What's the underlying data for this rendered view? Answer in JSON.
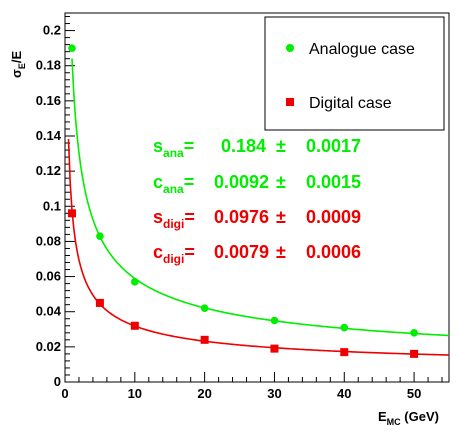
{
  "chart_data": {
    "type": "scatter",
    "xlabel": "E",
    "xlabel_sub": "MC",
    "xlabel_unit": " (GeV)",
    "ylabel": "σ",
    "ylabel_sub": "E",
    "ylabel_rest": "/E",
    "xlim": [
      0,
      55
    ],
    "ylim": [
      0,
      0.21
    ],
    "xticks": [
      0,
      10,
      20,
      30,
      40,
      50
    ],
    "yticks": [
      0,
      0.02,
      0.04,
      0.06,
      0.08,
      0.1,
      0.12,
      0.14,
      0.16,
      0.18,
      0.2
    ],
    "ytick_labels": [
      "0",
      "0.02",
      "0.04",
      "0.06",
      "0.08",
      "0.1",
      "0.12",
      "0.14",
      "0.16",
      "0.18",
      "0.2"
    ],
    "grid": false,
    "legend_position": "top-right",
    "series": [
      {
        "name": "Analogue case",
        "color": "#00ee00",
        "marker": "circle",
        "x": [
          1,
          5,
          10,
          20,
          30,
          40,
          50
        ],
        "y": [
          0.19,
          0.083,
          0.057,
          0.042,
          0.035,
          0.031,
          0.028
        ],
        "fit": {
          "s": 0.184,
          "c": 0.0092
        }
      },
      {
        "name": "Digital case",
        "color": "#ee0000",
        "marker": "square",
        "x": [
          1,
          5,
          10,
          20,
          30,
          40,
          50
        ],
        "y": [
          0.096,
          0.045,
          0.032,
          0.024,
          0.019,
          0.017,
          0.016
        ],
        "fit": {
          "s": 0.0976,
          "c": 0.0079
        }
      }
    ],
    "annotations": [
      {
        "main": "s",
        "sub": "ana",
        "eq": "=",
        "value": "0.184",
        "pm": "±",
        "err": "0.0017",
        "color": "#00ee00"
      },
      {
        "main": "c",
        "sub": "ana",
        "eq": "=",
        "value": "0.0092",
        "pm": "±",
        "err": "0.0015",
        "color": "#00ee00"
      },
      {
        "main": "s",
        "sub": "digi",
        "eq": "=",
        "value": "0.0976",
        "pm": "±",
        "err": "0.0009",
        "color": "#ee0000"
      },
      {
        "main": "c",
        "sub": "digi",
        "eq": "=",
        "value": "0.0079",
        "pm": "±",
        "err": "0.0006",
        "color": "#ee0000"
      }
    ]
  }
}
